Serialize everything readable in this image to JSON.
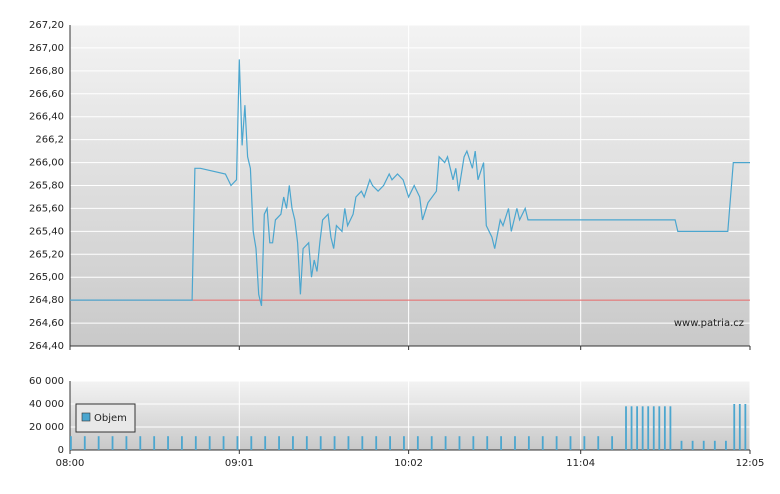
{
  "chart_data": [
    {
      "type": "line",
      "color": "#4ba6cf",
      "annotation": "www.patria.cz",
      "reference_line": 264.8,
      "reference_color": "#e06060",
      "x": [
        "08:00",
        "08:44",
        "08:45",
        "08:47",
        "08:56",
        "08:58",
        "09:00",
        "09:01",
        "09:02",
        "09:03",
        "09:04",
        "09:05",
        "09:06",
        "09:07",
        "09:08",
        "09:09",
        "09:10",
        "09:11",
        "09:12",
        "09:13",
        "09:14",
        "09:16",
        "09:17",
        "09:18",
        "09:19",
        "09:20",
        "09:21",
        "09:22",
        "09:23",
        "09:24",
        "09:26",
        "09:27",
        "09:28",
        "09:29",
        "09:30",
        "09:31",
        "09:33",
        "09:34",
        "09:35",
        "09:36",
        "09:38",
        "09:39",
        "09:40",
        "09:42",
        "09:43",
        "09:45",
        "09:46",
        "09:48",
        "09:49",
        "09:51",
        "09:53",
        "09:55",
        "09:56",
        "09:58",
        "10:00",
        "10:02",
        "10:04",
        "10:06",
        "10:07",
        "10:09",
        "10:12",
        "10:13",
        "10:15",
        "10:16",
        "10:18",
        "10:19",
        "10:20",
        "10:22",
        "10:23",
        "10:25",
        "10:26",
        "10:27",
        "10:29",
        "10:30",
        "10:32",
        "10:33",
        "10:35",
        "10:36",
        "10:38",
        "10:39",
        "10:41",
        "10:42",
        "10:44",
        "10:45",
        "11:38",
        "11:39",
        "11:57",
        "11:59",
        "12:05"
      ],
      "values": [
        264.8,
        264.8,
        265.95,
        265.95,
        265.9,
        265.8,
        265.85,
        266.9,
        266.15,
        266.5,
        266.05,
        265.95,
        265.4,
        265.25,
        264.85,
        264.75,
        265.55,
        265.6,
        265.3,
        265.3,
        265.5,
        265.55,
        265.7,
        265.6,
        265.8,
        265.6,
        265.5,
        265.3,
        264.85,
        265.25,
        265.3,
        265.0,
        265.15,
        265.05,
        265.3,
        265.5,
        265.55,
        265.35,
        265.25,
        265.45,
        265.4,
        265.6,
        265.45,
        265.55,
        265.7,
        265.75,
        265.7,
        265.85,
        265.8,
        265.75,
        265.8,
        265.9,
        265.85,
        265.9,
        265.85,
        265.7,
        265.8,
        265.7,
        265.5,
        265.65,
        265.75,
        266.05,
        266.0,
        266.05,
        265.85,
        265.95,
        265.75,
        266.05,
        266.1,
        265.95,
        266.1,
        265.85,
        266.0,
        265.45,
        265.35,
        265.25,
        265.5,
        265.45,
        265.6,
        265.4,
        265.6,
        265.5,
        265.6,
        265.5,
        265.5,
        265.4,
        265.4,
        266.0,
        266.0
      ],
      "xlim": [
        "08:00",
        "12:05"
      ],
      "xticks": [
        "08:00",
        "09:01",
        "10:02",
        "11:04",
        "12:05"
      ],
      "ylim": [
        264.4,
        267.2
      ],
      "yticks": [
        {
          "value": 264.4,
          "label": "264,40"
        },
        {
          "value": 264.6,
          "label": "264,60"
        },
        {
          "value": 264.8,
          "label": "264,80"
        },
        {
          "value": 265.0,
          "label": "265,00"
        },
        {
          "value": 265.2,
          "label": "265,20"
        },
        {
          "value": 265.4,
          "label": "265,40"
        },
        {
          "value": 265.6,
          "label": "265,60"
        },
        {
          "value": 265.8,
          "label": "265,80"
        },
        {
          "value": 266.0,
          "label": "266,00"
        },
        {
          "value": 266.2,
          "label": "266,2"
        },
        {
          "value": 266.4,
          "label": "266,40"
        },
        {
          "value": 266.6,
          "label": "266,60"
        },
        {
          "value": 266.8,
          "label": "266,80"
        },
        {
          "value": 267.0,
          "label": "267,00"
        },
        {
          "value": 267.2,
          "label": "267,20"
        }
      ],
      "grid": true
    },
    {
      "type": "bar",
      "x": [
        "08:00",
        "08:05",
        "08:10",
        "08:15",
        "08:20",
        "08:25",
        "08:30",
        "08:35",
        "08:40",
        "08:45",
        "08:50",
        "08:55",
        "09:00",
        "09:05",
        "09:10",
        "09:15",
        "09:20",
        "09:25",
        "09:30",
        "09:35",
        "09:40",
        "09:45",
        "09:50",
        "09:55",
        "10:00",
        "10:05",
        "10:10",
        "10:15",
        "10:20",
        "10:25",
        "10:30",
        "10:35",
        "10:40",
        "10:45",
        "10:50",
        "10:55",
        "11:00",
        "11:05",
        "11:10",
        "11:15",
        "11:20",
        "11:22",
        "11:24",
        "11:26",
        "11:28",
        "11:30",
        "11:32",
        "11:34",
        "11:36",
        "11:40",
        "11:44",
        "11:48",
        "11:52",
        "11:56",
        "11:59",
        "12:01",
        "12:03"
      ],
      "series": [
        {
          "name": "Objem",
          "color": "#4ba6cf",
          "values": [
            12000,
            12000,
            12000,
            12000,
            12000,
            12000,
            12000,
            12000,
            12000,
            12000,
            12000,
            12000,
            12000,
            12000,
            12000,
            12000,
            12000,
            12000,
            12000,
            12000,
            12000,
            12000,
            12000,
            12000,
            12000,
            12000,
            12000,
            12000,
            12000,
            12000,
            12000,
            12000,
            12000,
            12000,
            12000,
            12000,
            12000,
            12000,
            12000,
            12000,
            38000,
            38000,
            38000,
            38000,
            38000,
            38000,
            38000,
            38000,
            38000,
            8000,
            8000,
            8000,
            8000,
            8000,
            40000,
            40000,
            40000
          ]
        }
      ],
      "xlim": [
        "08:00",
        "12:05"
      ],
      "xticks": [
        "08:00",
        "09:01",
        "10:02",
        "11:04",
        "12:05"
      ],
      "ylim": [
        0,
        60000
      ],
      "yticks": [
        0,
        {
          "value": 20000,
          "label": "20 000"
        },
        {
          "value": 40000,
          "label": "40 000"
        },
        {
          "value": 60000,
          "label": "60 000"
        }
      ],
      "grid": true
    }
  ]
}
